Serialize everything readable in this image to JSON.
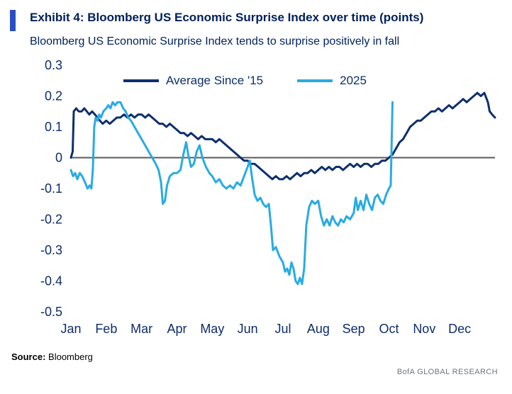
{
  "header": {
    "exhibit_title": "Exhibit 4: Bloomberg US Economic Surprise Index over time (points)",
    "subtitle": "Bloomberg US Economic Surprise Index tends to surprise positively in fall"
  },
  "colors": {
    "accent_bar": "#2b4fc2",
    "title_text": "#00205b",
    "axis_text": "#0d2d6b",
    "zero_line": "#595959",
    "navy_series": "#0e2f6e",
    "blue_series": "#29abe2",
    "brand_text": "#6e7780"
  },
  "legend": [
    {
      "label": "Average Since '15",
      "color": "#0e2f6e"
    },
    {
      "label": "2025",
      "color": "#29abe2"
    }
  ],
  "footer": {
    "source_label": "Source:",
    "source_value": "Bloomberg",
    "brand": "BofA GLOBAL RESEARCH"
  },
  "chart_data": {
    "type": "line",
    "title": "Bloomberg US Economic Surprise Index over time (points)",
    "xlabel": "",
    "ylabel": "points",
    "legend_position": "top-inside",
    "grid": false,
    "zero_line": true,
    "ylim": [
      -0.5,
      0.3
    ],
    "xlim_months": [
      0,
      12
    ],
    "y_tick_labels": [
      "0.3",
      "0.2",
      "0.1",
      "0",
      "-0.1",
      "-0.2",
      "-0.3",
      "-0.4",
      "-0.5"
    ],
    "x_tick_labels": [
      "Jan",
      "Feb",
      "Mar",
      "Apr",
      "May",
      "Jun",
      "Jul",
      "Aug",
      "Sep",
      "Oct",
      "Nov",
      "Dec"
    ],
    "series": [
      {
        "name": "Average Since '15",
        "color": "#0e2f6e",
        "points": [
          [
            0.0,
            0.0
          ],
          [
            0.05,
            0.02
          ],
          [
            0.08,
            0.15
          ],
          [
            0.15,
            0.16
          ],
          [
            0.22,
            0.15
          ],
          [
            0.3,
            0.15
          ],
          [
            0.38,
            0.16
          ],
          [
            0.45,
            0.15
          ],
          [
            0.52,
            0.14
          ],
          [
            0.6,
            0.15
          ],
          [
            0.68,
            0.14
          ],
          [
            0.75,
            0.13
          ],
          [
            0.82,
            0.12
          ],
          [
            0.9,
            0.11
          ],
          [
            1.0,
            0.12
          ],
          [
            1.1,
            0.11
          ],
          [
            1.2,
            0.12
          ],
          [
            1.3,
            0.13
          ],
          [
            1.4,
            0.13
          ],
          [
            1.5,
            0.14
          ],
          [
            1.6,
            0.13
          ],
          [
            1.7,
            0.14
          ],
          [
            1.8,
            0.13
          ],
          [
            1.9,
            0.14
          ],
          [
            2.0,
            0.14
          ],
          [
            2.1,
            0.13
          ],
          [
            2.2,
            0.14
          ],
          [
            2.3,
            0.13
          ],
          [
            2.4,
            0.12
          ],
          [
            2.5,
            0.11
          ],
          [
            2.6,
            0.11
          ],
          [
            2.7,
            0.1
          ],
          [
            2.8,
            0.11
          ],
          [
            2.9,
            0.1
          ],
          [
            3.0,
            0.09
          ],
          [
            3.1,
            0.08
          ],
          [
            3.2,
            0.08
          ],
          [
            3.3,
            0.07
          ],
          [
            3.4,
            0.08
          ],
          [
            3.5,
            0.07
          ],
          [
            3.6,
            0.06
          ],
          [
            3.7,
            0.07
          ],
          [
            3.8,
            0.06
          ],
          [
            3.9,
            0.06
          ],
          [
            4.0,
            0.06
          ],
          [
            4.1,
            0.05
          ],
          [
            4.2,
            0.06
          ],
          [
            4.3,
            0.05
          ],
          [
            4.4,
            0.04
          ],
          [
            4.5,
            0.03
          ],
          [
            4.6,
            0.02
          ],
          [
            4.7,
            0.01
          ],
          [
            4.8,
            0.0
          ],
          [
            4.9,
            -0.01
          ],
          [
            5.0,
            -0.01
          ],
          [
            5.1,
            -0.02
          ],
          [
            5.2,
            -0.02
          ],
          [
            5.3,
            -0.03
          ],
          [
            5.4,
            -0.04
          ],
          [
            5.5,
            -0.05
          ],
          [
            5.6,
            -0.06
          ],
          [
            5.7,
            -0.07
          ],
          [
            5.8,
            -0.06
          ],
          [
            5.9,
            -0.07
          ],
          [
            6.0,
            -0.07
          ],
          [
            6.1,
            -0.06
          ],
          [
            6.2,
            -0.07
          ],
          [
            6.3,
            -0.06
          ],
          [
            6.4,
            -0.05
          ],
          [
            6.5,
            -0.06
          ],
          [
            6.6,
            -0.05
          ],
          [
            6.7,
            -0.05
          ],
          [
            6.8,
            -0.04
          ],
          [
            6.9,
            -0.05
          ],
          [
            7.0,
            -0.04
          ],
          [
            7.1,
            -0.03
          ],
          [
            7.2,
            -0.04
          ],
          [
            7.3,
            -0.03
          ],
          [
            7.4,
            -0.04
          ],
          [
            7.5,
            -0.03
          ],
          [
            7.6,
            -0.03
          ],
          [
            7.7,
            -0.04
          ],
          [
            7.8,
            -0.03
          ],
          [
            7.9,
            -0.02
          ],
          [
            8.0,
            -0.03
          ],
          [
            8.1,
            -0.02
          ],
          [
            8.2,
            -0.03
          ],
          [
            8.3,
            -0.02
          ],
          [
            8.4,
            -0.02
          ],
          [
            8.5,
            -0.03
          ],
          [
            8.6,
            -0.02
          ],
          [
            8.7,
            -0.02
          ],
          [
            8.8,
            -0.01
          ],
          [
            8.9,
            -0.01
          ],
          [
            9.0,
            0.0
          ],
          [
            9.1,
            0.01
          ],
          [
            9.2,
            0.03
          ],
          [
            9.3,
            0.05
          ],
          [
            9.4,
            0.06
          ],
          [
            9.5,
            0.08
          ],
          [
            9.6,
            0.1
          ],
          [
            9.7,
            0.11
          ],
          [
            9.8,
            0.12
          ],
          [
            9.9,
            0.12
          ],
          [
            10.0,
            0.13
          ],
          [
            10.1,
            0.14
          ],
          [
            10.2,
            0.15
          ],
          [
            10.3,
            0.15
          ],
          [
            10.4,
            0.16
          ],
          [
            10.5,
            0.15
          ],
          [
            10.6,
            0.16
          ],
          [
            10.7,
            0.17
          ],
          [
            10.8,
            0.16
          ],
          [
            10.9,
            0.17
          ],
          [
            11.0,
            0.18
          ],
          [
            11.1,
            0.19
          ],
          [
            11.2,
            0.18
          ],
          [
            11.3,
            0.19
          ],
          [
            11.4,
            0.2
          ],
          [
            11.5,
            0.21
          ],
          [
            11.6,
            0.2
          ],
          [
            11.7,
            0.21
          ],
          [
            11.8,
            0.18
          ],
          [
            11.85,
            0.15
          ],
          [
            11.92,
            0.14
          ],
          [
            12.0,
            0.13
          ]
        ]
      },
      {
        "name": "2025",
        "color": "#29abe2",
        "points": [
          [
            0.0,
            -0.04
          ],
          [
            0.06,
            -0.06
          ],
          [
            0.12,
            -0.05
          ],
          [
            0.18,
            -0.07
          ],
          [
            0.25,
            -0.05
          ],
          [
            0.32,
            -0.06
          ],
          [
            0.4,
            -0.08
          ],
          [
            0.47,
            -0.1
          ],
          [
            0.53,
            -0.09
          ],
          [
            0.58,
            -0.1
          ],
          [
            0.62,
            -0.04
          ],
          [
            0.66,
            0.1
          ],
          [
            0.7,
            0.13
          ],
          [
            0.75,
            0.12
          ],
          [
            0.8,
            0.14
          ],
          [
            0.85,
            0.13
          ],
          [
            0.92,
            0.15
          ],
          [
            1.0,
            0.16
          ],
          [
            1.06,
            0.17
          ],
          [
            1.12,
            0.16
          ],
          [
            1.18,
            0.18
          ],
          [
            1.25,
            0.17
          ],
          [
            1.32,
            0.18
          ],
          [
            1.4,
            0.18
          ],
          [
            1.48,
            0.16
          ],
          [
            1.55,
            0.15
          ],
          [
            1.62,
            0.13
          ],
          [
            1.7,
            0.12
          ],
          [
            1.8,
            0.1
          ],
          [
            1.9,
            0.08
          ],
          [
            2.0,
            0.06
          ],
          [
            2.1,
            0.04
          ],
          [
            2.2,
            0.02
          ],
          [
            2.3,
            0.0
          ],
          [
            2.4,
            -0.02
          ],
          [
            2.48,
            -0.04
          ],
          [
            2.55,
            -0.08
          ],
          [
            2.6,
            -0.15
          ],
          [
            2.66,
            -0.14
          ],
          [
            2.72,
            -0.09
          ],
          [
            2.8,
            -0.06
          ],
          [
            2.9,
            -0.05
          ],
          [
            3.0,
            -0.05
          ],
          [
            3.1,
            -0.04
          ],
          [
            3.18,
            0.01
          ],
          [
            3.26,
            0.05
          ],
          [
            3.32,
            0.01
          ],
          [
            3.4,
            -0.03
          ],
          [
            3.48,
            -0.02
          ],
          [
            3.56,
            0.02
          ],
          [
            3.64,
            0.04
          ],
          [
            3.72,
            0.0
          ],
          [
            3.82,
            -0.03
          ],
          [
            3.92,
            -0.05
          ],
          [
            4.0,
            -0.06
          ],
          [
            4.1,
            -0.08
          ],
          [
            4.2,
            -0.07
          ],
          [
            4.3,
            -0.09
          ],
          [
            4.4,
            -0.1
          ],
          [
            4.5,
            -0.09
          ],
          [
            4.6,
            -0.1
          ],
          [
            4.7,
            -0.08
          ],
          [
            4.8,
            -0.09
          ],
          [
            4.9,
            -0.06
          ],
          [
            5.0,
            -0.03
          ],
          [
            5.06,
            -0.01
          ],
          [
            5.12,
            -0.06
          ],
          [
            5.2,
            -0.12
          ],
          [
            5.28,
            -0.14
          ],
          [
            5.36,
            -0.13
          ],
          [
            5.44,
            -0.15
          ],
          [
            5.52,
            -0.16
          ],
          [
            5.6,
            -0.15
          ],
          [
            5.66,
            -0.22
          ],
          [
            5.72,
            -0.3
          ],
          [
            5.8,
            -0.29
          ],
          [
            5.9,
            -0.32
          ],
          [
            6.0,
            -0.34
          ],
          [
            6.06,
            -0.37
          ],
          [
            6.12,
            -0.36
          ],
          [
            6.18,
            -0.38
          ],
          [
            6.24,
            -0.34
          ],
          [
            6.3,
            -0.36
          ],
          [
            6.36,
            -0.4
          ],
          [
            6.42,
            -0.41
          ],
          [
            6.48,
            -0.39
          ],
          [
            6.54,
            -0.41
          ],
          [
            6.6,
            -0.36
          ],
          [
            6.66,
            -0.22
          ],
          [
            6.74,
            -0.16
          ],
          [
            6.82,
            -0.14
          ],
          [
            6.9,
            -0.15
          ],
          [
            7.0,
            -0.14
          ],
          [
            7.08,
            -0.19
          ],
          [
            7.16,
            -0.22
          ],
          [
            7.24,
            -0.2
          ],
          [
            7.32,
            -0.22
          ],
          [
            7.4,
            -0.19
          ],
          [
            7.48,
            -0.21
          ],
          [
            7.56,
            -0.22
          ],
          [
            7.64,
            -0.2
          ],
          [
            7.72,
            -0.21
          ],
          [
            7.8,
            -0.19
          ],
          [
            7.9,
            -0.2
          ],
          [
            8.0,
            -0.18
          ],
          [
            8.06,
            -0.13
          ],
          [
            8.12,
            -0.17
          ],
          [
            8.2,
            -0.14
          ],
          [
            8.28,
            -0.17
          ],
          [
            8.36,
            -0.12
          ],
          [
            8.44,
            -0.15
          ],
          [
            8.52,
            -0.17
          ],
          [
            8.6,
            -0.13
          ],
          [
            8.68,
            -0.12
          ],
          [
            8.76,
            -0.14
          ],
          [
            8.84,
            -0.15
          ],
          [
            8.92,
            -0.12
          ],
          [
            9.0,
            -0.1
          ],
          [
            9.05,
            -0.09
          ],
          [
            9.1,
            0.18
          ]
        ]
      }
    ]
  }
}
